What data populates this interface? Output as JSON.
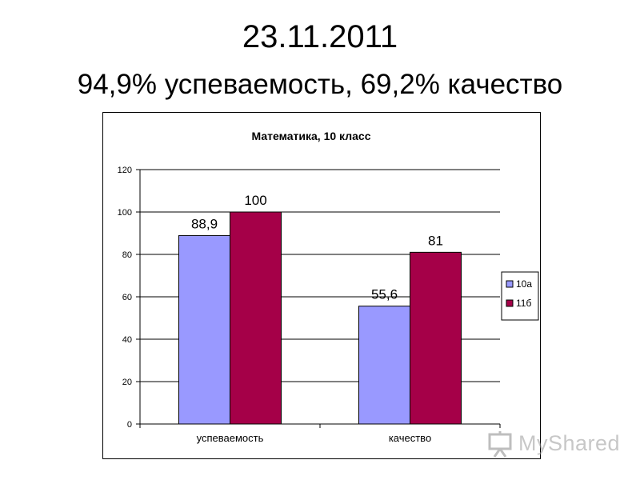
{
  "slide": {
    "title": "23.11.2011",
    "subtitle": "94,9% успеваемость, 69,2% качество"
  },
  "chart_data": {
    "type": "bar",
    "title": "Математика, 10 класс",
    "categories": [
      "успеваемость",
      "качество"
    ],
    "series": [
      {
        "name": "10а",
        "values": [
          88.9,
          55.6
        ],
        "labels": [
          "88,9",
          "55,6"
        ],
        "color": "#9999ff"
      },
      {
        "name": "11б",
        "values": [
          100,
          81
        ],
        "labels": [
          "100",
          "81"
        ],
        "color": "#a50048"
      }
    ],
    "ylim": [
      0,
      120
    ],
    "yticks": [
      0,
      20,
      40,
      60,
      80,
      100,
      120
    ],
    "xlabel": "",
    "ylabel": "",
    "grid": true,
    "legend": "right"
  },
  "watermark": {
    "text": "MyShared"
  }
}
